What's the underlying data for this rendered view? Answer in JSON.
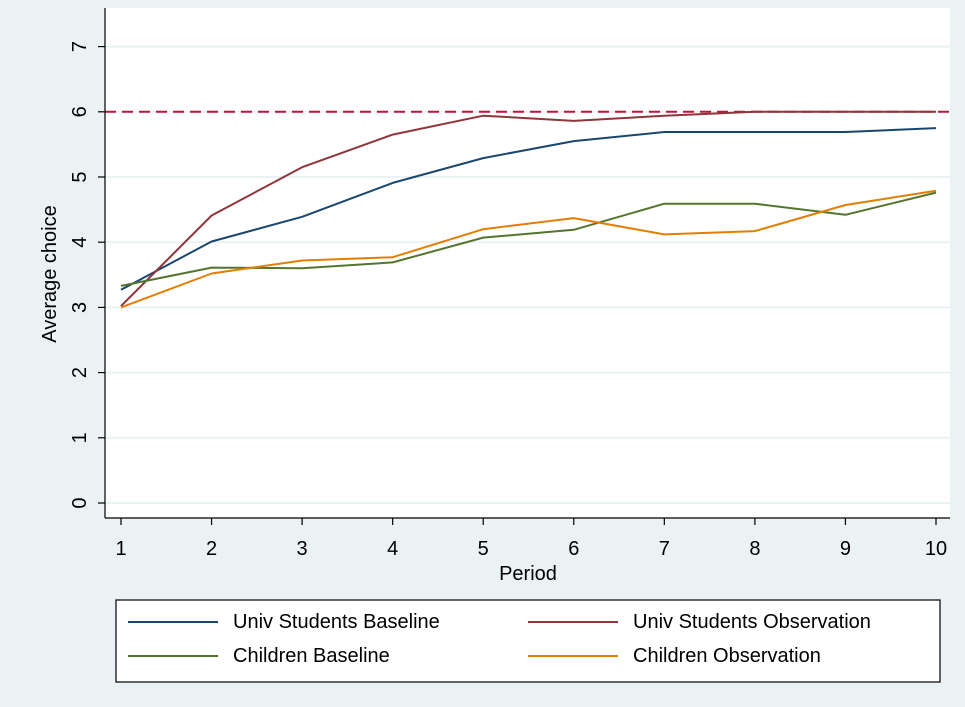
{
  "chart_data": {
    "type": "line",
    "xlabel": "Period",
    "ylabel": "Average choice",
    "x": [
      1,
      2,
      3,
      4,
      5,
      6,
      7,
      8,
      9,
      10
    ],
    "xlim": [
      1,
      10
    ],
    "ylim": [
      0,
      7
    ],
    "yticks": [
      0,
      1,
      2,
      3,
      4,
      5,
      6,
      7
    ],
    "grid": true,
    "legend_position": "bottom",
    "reference_line": {
      "y": 6,
      "style": "dashed",
      "color": "#c0143c"
    },
    "series": [
      {
        "name": "Univ Students Baseline",
        "color": "#1a476f",
        "values": [
          3.27,
          4.01,
          4.39,
          4.91,
          5.29,
          5.55,
          5.69,
          5.69,
          5.69,
          5.75
        ]
      },
      {
        "name": "Univ Students Observation",
        "color": "#90353b",
        "values": [
          3.02,
          4.41,
          5.15,
          5.65,
          5.94,
          5.86,
          5.94,
          6.0,
          6.0,
          6.0
        ]
      },
      {
        "name": "Children Baseline",
        "color": "#55752f",
        "values": [
          3.33,
          3.61,
          3.6,
          3.69,
          4.07,
          4.19,
          4.59,
          4.59,
          4.42,
          4.76
        ]
      },
      {
        "name": "Children Observation",
        "color": "#e37e00",
        "values": [
          3.0,
          3.52,
          3.72,
          3.77,
          4.2,
          4.37,
          4.12,
          4.17,
          4.57,
          4.79
        ]
      }
    ]
  },
  "colors": {
    "outer_background": "#eaf2f3",
    "plot_background": "#ffffff",
    "grid": "#eaf2f3"
  }
}
